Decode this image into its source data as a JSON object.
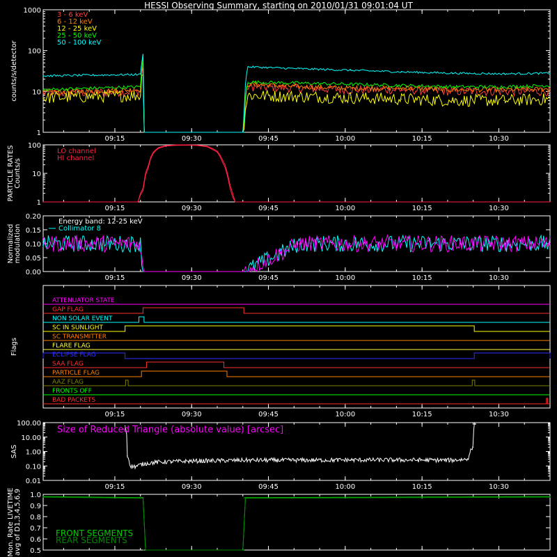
{
  "title": "HESSI Observing Summary, starting on 2010/01/31 09:01:04 UT",
  "time_axis": {
    "start_minutes": 0,
    "end_minutes": 99,
    "tick_labels": [
      "09:15",
      "09:30",
      "09:45",
      "10:00",
      "10:15",
      "10:30"
    ],
    "tick_minutes": [
      14,
      29,
      44,
      59,
      74,
      89
    ]
  },
  "colors": {
    "background": "#000000",
    "axes": "#ffffff",
    "e3_6": "#ff4040",
    "e6_12": "#ff7f00",
    "e12_25": "#ffff00",
    "e25_50": "#00ff00",
    "e50_100": "#00ffff",
    "lo_channel": "#ff2040",
    "hi_channel": "#ff2040",
    "modulation_12_25": "#ff00ff",
    "collimator8": "#00ffff",
    "sas": "#ffffff",
    "magenta_text": "#ff00ff",
    "front_segments": "#00cc00",
    "rear_segments": "#008800"
  },
  "chart_data": [
    {
      "type": "line",
      "panel": "count-rates",
      "ylabel": "counts/s/detector",
      "yscale": "log",
      "ylim": [
        1,
        1000
      ],
      "ytick_labels": [
        "1",
        "10",
        "100",
        "1000"
      ],
      "gaps": [
        [
          19.5,
          39.2
        ]
      ],
      "legend_position": "top-left",
      "series": [
        {
          "name": "3 - 6 keV",
          "color_key": "e3_6",
          "x": [
            0,
            19,
            19.5,
            39.2,
            40,
            50,
            60,
            70,
            80,
            90,
            99
          ],
          "y": [
            9,
            10,
            40,
            1,
            13,
            12,
            11,
            11,
            10,
            10,
            10
          ]
        },
        {
          "name": "6 - 12 keV",
          "color_key": "e6_12",
          "x": [
            0,
            19,
            19.5,
            39.2,
            40,
            50,
            60,
            70,
            80,
            90,
            99
          ],
          "y": [
            9.5,
            11,
            45,
            1,
            15,
            13,
            12,
            12,
            11,
            11,
            11.5
          ]
        },
        {
          "name": "12 - 25 keV",
          "color_key": "e12_25",
          "x": [
            0,
            19,
            19.5,
            39.2,
            40,
            50,
            60,
            70,
            80,
            90,
            99
          ],
          "y": [
            7,
            8,
            35,
            1,
            8,
            7.5,
            7,
            6.5,
            6,
            6,
            6.5
          ]
        },
        {
          "name": "25 - 50 keV",
          "color_key": "e25_50",
          "x": [
            0,
            19,
            19.5,
            39.2,
            40,
            50,
            60,
            70,
            80,
            90,
            99
          ],
          "y": [
            11,
            13,
            60,
            1,
            17,
            16,
            15,
            14,
            13,
            13,
            14
          ]
        },
        {
          "name": "50 - 100 keV",
          "color_key": "e50_100",
          "x": [
            0,
            19,
            19.5,
            39.2,
            40,
            50,
            60,
            70,
            80,
            90,
            99
          ],
          "y": [
            24,
            26,
            80,
            1,
            40,
            36,
            33,
            30,
            28,
            27,
            28
          ]
        }
      ]
    },
    {
      "type": "line",
      "panel": "particle-rates",
      "ylabel": "PARTICLE RATES Counts/s",
      "ylabel_lines": [
        "PARTICLE RATES",
        "Counts/s"
      ],
      "yscale": "log",
      "ylim": [
        1,
        100
      ],
      "ytick_labels": [
        "1",
        "10",
        "100"
      ],
      "legend_position": "top-left",
      "series": [
        {
          "name": "LO channel",
          "color_key": "lo_channel",
          "x": [
            0,
            18.5,
            19.5,
            20.5,
            21.5,
            22.5,
            24,
            26,
            28,
            30,
            32,
            34,
            35,
            36,
            36.5,
            37,
            37.5,
            99
          ],
          "y": [
            1,
            1,
            3,
            18,
            55,
            80,
            95,
            100,
            100,
            98,
            90,
            60,
            30,
            10,
            4,
            2,
            1,
            1
          ]
        },
        {
          "name": "HI channel",
          "color_key": "hi_channel",
          "x": [
            0,
            18.5,
            19.5,
            20.5,
            21.5,
            22.5,
            24,
            26,
            28,
            30,
            32,
            34,
            35,
            36,
            36.5,
            37,
            37.5,
            99
          ],
          "y": [
            1,
            1,
            2.5,
            15,
            50,
            75,
            90,
            96,
            97,
            95,
            85,
            55,
            25,
            8,
            3,
            1.5,
            1,
            1
          ]
        }
      ]
    },
    {
      "type": "line",
      "panel": "modulation",
      "ylabel": "Normalized modulation",
      "ylabel_lines": [
        "Normalized",
        "modulation"
      ],
      "ylim": [
        0,
        0.2
      ],
      "ytick_labels": [
        "0.00",
        "0.05",
        "0.10",
        "0.15",
        "0.20"
      ],
      "gaps": [
        [
          19.5,
          39.2
        ]
      ],
      "legend_position": "top-left",
      "series": [
        {
          "name": "Energy band: 12-25 keV",
          "color_key": "modulation_12_25",
          "x": [
            0,
            10,
            19,
            19.5,
            39.2,
            50,
            60,
            70,
            80,
            90,
            99
          ],
          "y": [
            0.1,
            0.1,
            0.1,
            0,
            0,
            0.1,
            0.1,
            0.1,
            0.1,
            0.1,
            0.1
          ]
        },
        {
          "name": "Collimator 8",
          "color_key": "collimator8",
          "x": [
            0,
            10,
            19,
            19.5,
            39.2,
            50,
            60,
            70,
            80,
            90,
            99
          ],
          "y": [
            0.1,
            0.1,
            0.1,
            0,
            0,
            0.1,
            0.1,
            0.1,
            0.1,
            0.1,
            0.1
          ]
        }
      ]
    },
    {
      "type": "line",
      "panel": "flags",
      "ylabel": "Flags",
      "flags": [
        {
          "name": "ATTENUATOR STATE",
          "color": "#ff00ff",
          "on": []
        },
        {
          "name": "GAP FLAG",
          "color": "#ff3030",
          "on": [
            [
              19.5,
              39.2
            ]
          ]
        },
        {
          "name": "NON SOLAR EVENT",
          "color": "#00ffff",
          "on": [
            [
              18.7,
              19.7
            ]
          ]
        },
        {
          "name": "SC IN SUNLIGHT",
          "color": "#ffff00",
          "on": [
            [
              16,
              84.2
            ]
          ]
        },
        {
          "name": "SC TRANSMITTER",
          "color": "#ff7f00",
          "on": []
        },
        {
          "name": "FLARE FLAG",
          "color": "#ffff40",
          "on": []
        },
        {
          "name": "ECLIPSE FLAG",
          "color": "#3030ff",
          "on": [
            [
              0,
              16
            ],
            [
              84.2,
              99
            ]
          ]
        },
        {
          "name": "SAA FLAG",
          "color": "#ff3030",
          "on": [
            [
              20.2,
              35.3
            ]
          ]
        },
        {
          "name": "PARTICLE FLAG",
          "color": "#ff7f00",
          "on": [
            [
              19.2,
              35.9
            ]
          ]
        },
        {
          "name": "AAZ FLAG",
          "color": "#808000",
          "on": [
            [
              16.1,
              16.6
            ],
            [
              83.8,
              84.3
            ]
          ]
        },
        {
          "name": "FRONTS OFF",
          "color": "#00ff00",
          "on": []
        },
        {
          "name": "BAD PACKETS",
          "color": "#ff3030",
          "on": [
            [
              98.3,
              98.5
            ]
          ]
        }
      ]
    },
    {
      "type": "line",
      "panel": "sas",
      "ylabel": "SAS",
      "annotation": "Size of Reduced Triangle (absolute value) [arcsec]",
      "yscale": "log",
      "ylim": [
        0.01,
        100
      ],
      "ytick_labels": [
        "0.01",
        "0.10",
        "1.00",
        "10.00",
        "100.00"
      ],
      "series": [
        {
          "name": "",
          "color_key": "sas",
          "x": [
            16,
            16.4,
            17,
            18,
            20,
            22,
            25,
            30,
            40,
            50,
            60,
            70,
            80,
            83,
            84,
            84.2,
            84.5
          ],
          "y": [
            60,
            0.5,
            0.1,
            0.09,
            0.15,
            0.18,
            0.2,
            0.22,
            0.25,
            0.25,
            0.26,
            0.26,
            0.25,
            0.3,
            2,
            80,
            80
          ]
        }
      ]
    },
    {
      "type": "line",
      "panel": "livetime",
      "ylabel": "Mon. Rate LIVETIME avg of D1,3,4,5,6,9",
      "ylabel_lines": [
        "Mon. Rate LIVETIME",
        "avg of D1,3,4,5,6,9"
      ],
      "ylim": [
        0.5,
        1.0
      ],
      "ytick_labels": [
        "0.5",
        "0.6",
        "0.7",
        "0.8",
        "0.9",
        "1.0"
      ],
      "legend_position": "bottom-left",
      "series": [
        {
          "name": "FRONT SEGMENTS",
          "color_key": "front_segments",
          "x": [
            0,
            19.5,
            19.6,
            39.2,
            39.3,
            99
          ],
          "y": [
            0.98,
            0.97,
            0.5,
            0.5,
            0.97,
            0.98
          ]
        },
        {
          "name": "REAR SEGMENTS",
          "color_key": "rear_segments",
          "x": [
            0,
            19.5,
            19.6,
            39.2,
            39.3,
            99
          ],
          "y": [
            0.975,
            0.965,
            0.5,
            0.5,
            0.965,
            0.975
          ]
        }
      ]
    }
  ]
}
